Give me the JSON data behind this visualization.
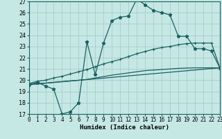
{
  "xlabel": "Humidex (Indice chaleur)",
  "bg_color": "#c5e8e5",
  "grid_color": "#a8ccca",
  "line_color": "#1a6060",
  "xlim": [
    0,
    23
  ],
  "ylim": [
    17,
    27
  ],
  "xticks": [
    0,
    1,
    2,
    3,
    4,
    5,
    6,
    7,
    8,
    9,
    10,
    11,
    12,
    13,
    14,
    15,
    16,
    17,
    18,
    19,
    20,
    21,
    22,
    23
  ],
  "yticks": [
    17,
    18,
    19,
    20,
    21,
    22,
    23,
    24,
    25,
    26,
    27
  ],
  "line1_x": [
    0,
    1,
    2,
    3,
    4,
    5,
    6,
    7,
    8,
    9,
    10,
    11,
    12,
    13,
    14,
    15,
    16,
    17,
    18,
    19,
    20,
    21,
    22,
    23
  ],
  "line1_y": [
    19.6,
    19.8,
    19.5,
    19.2,
    17.0,
    17.2,
    18.0,
    23.4,
    20.5,
    23.3,
    25.3,
    25.6,
    25.7,
    27.2,
    26.7,
    26.2,
    26.0,
    25.8,
    23.9,
    23.9,
    22.8,
    22.8,
    22.6,
    21.1
  ],
  "line2_x": [
    0,
    1,
    2,
    3,
    4,
    5,
    6,
    7,
    8,
    9,
    10,
    11,
    12,
    13,
    14,
    15,
    16,
    17,
    18,
    19,
    20,
    21,
    22,
    23
  ],
  "line2_y": [
    19.7,
    19.9,
    20.0,
    20.2,
    20.35,
    20.55,
    20.75,
    20.95,
    21.2,
    21.45,
    21.65,
    21.85,
    22.1,
    22.35,
    22.55,
    22.75,
    22.9,
    23.0,
    23.15,
    23.25,
    23.3,
    23.3,
    23.3,
    21.1
  ],
  "line3_x": [
    0,
    1,
    2,
    3,
    4,
    5,
    6,
    7,
    8,
    9,
    10,
    11,
    12,
    13,
    14,
    15,
    16,
    17,
    18,
    19,
    20,
    21,
    22,
    23
  ],
  "line3_y": [
    19.6,
    19.7,
    19.75,
    19.82,
    19.88,
    19.94,
    20.0,
    20.07,
    20.2,
    20.32,
    20.45,
    20.55,
    20.65,
    20.75,
    20.85,
    20.9,
    20.95,
    21.0,
    21.05,
    21.08,
    21.1,
    21.1,
    21.1,
    21.1
  ],
  "line4_x": [
    0,
    23
  ],
  "line4_y": [
    19.6,
    21.1
  ],
  "line1_marker": "*",
  "line2_marker": "+"
}
